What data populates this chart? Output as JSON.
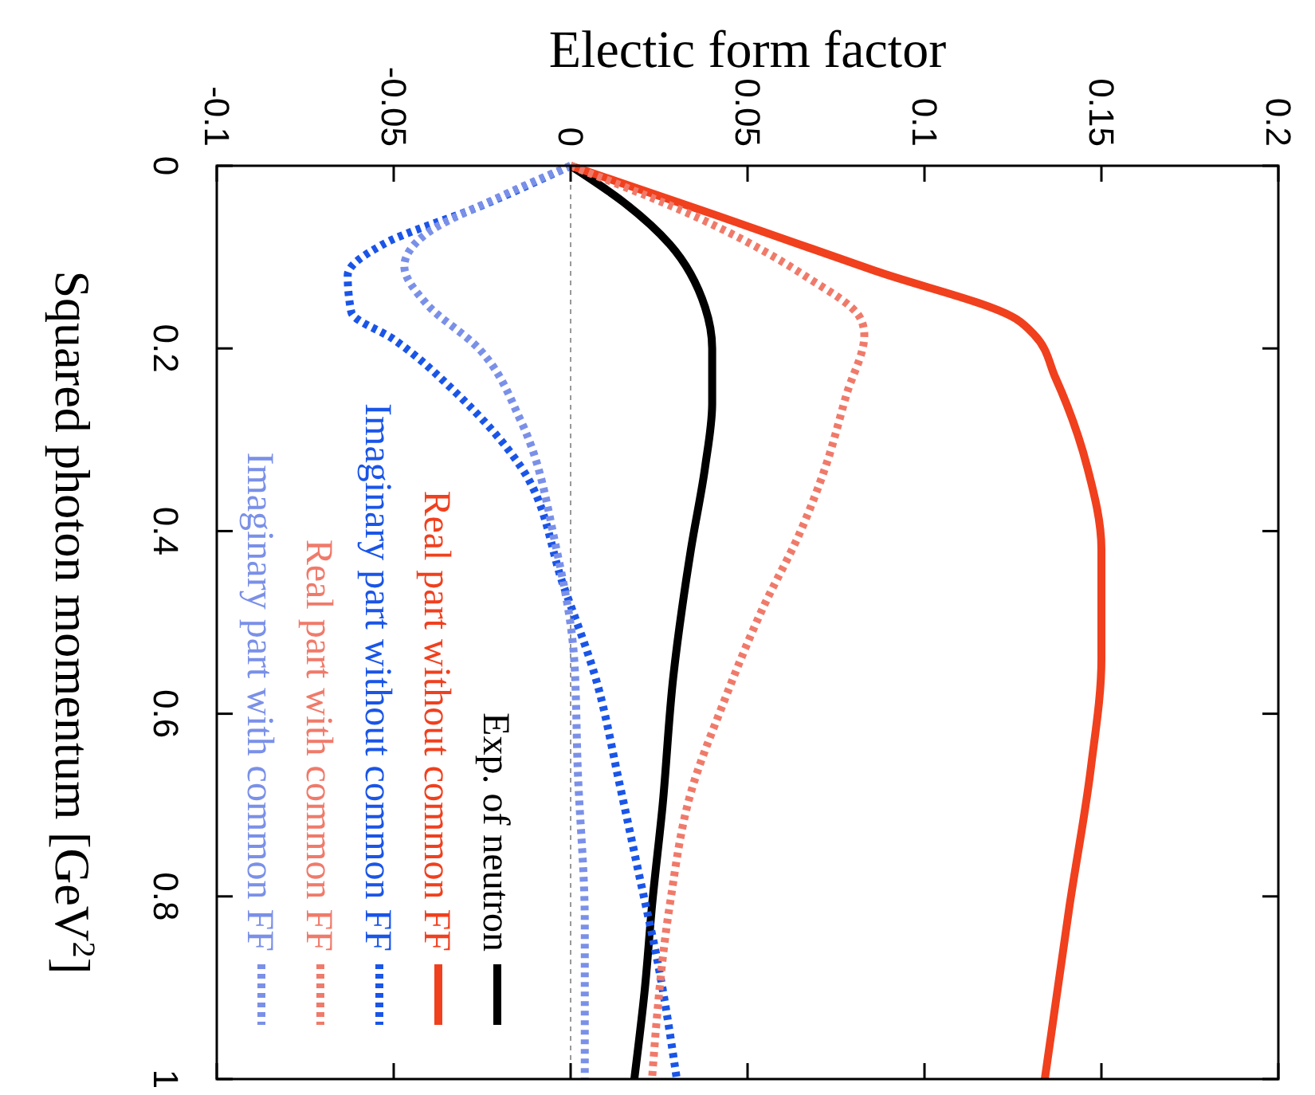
{
  "chart_data": {
    "type": "line",
    "xlabel": "Electic form factor",
    "ylabel": "Squared photon momentum [GeV$^{2}$]",
    "xlim": [
      -0.1,
      0.2
    ],
    "ylim": [
      1,
      0
    ],
    "xticks": [
      -0.1,
      -0.05,
      0,
      0.05,
      0.1,
      0.15,
      0.2
    ],
    "yticks": [
      0,
      0.2,
      0.4,
      0.6,
      0.8,
      1
    ],
    "grid": false,
    "legend": "bottom left",
    "marker": "none",
    "ref_lines": [
      {
        "axis": "x",
        "value": 0,
        "color": "#999999",
        "line_style": "dotted"
      }
    ],
    "series": [
      {
        "name": "Exp. of neutron",
        "color": "#000000",
        "line_style": "solid",
        "x": [
          0,
          0.015,
          0.028,
          0.038,
          0.04,
          0.04,
          0.038,
          0.034,
          0.029,
          0.026,
          0.023,
          0.021,
          0.018
        ],
        "values": [
          0,
          0.04,
          0.086,
          0.155,
          0.2,
          0.26,
          0.33,
          0.42,
          0.56,
          0.7,
          0.81,
          0.9,
          1.0
        ]
      },
      {
        "name": "Real part without common FF",
        "color": "#f0401e",
        "line_style": "solid",
        "x": [
          0,
          0.041,
          0.086,
          0.126,
          0.131,
          0.137,
          0.146,
          0.15,
          0.15,
          0.147,
          0.141,
          0.134
        ],
        "values": [
          0,
          0.054,
          0.115,
          0.168,
          0.185,
          0.232,
          0.33,
          0.42,
          0.54,
          0.66,
          0.81,
          1.0
        ]
      },
      {
        "name": "Imaginary part without common FF",
        "color": "#1a55e8",
        "line_style": "dotted",
        "x": [
          0,
          -0.026,
          -0.053,
          -0.063,
          -0.062,
          -0.05,
          -0.032,
          -0.014,
          -0.002,
          0.007,
          0.014,
          0.019,
          0.025,
          0.03
        ],
        "values": [
          0,
          0.045,
          0.086,
          0.12,
          0.16,
          0.19,
          0.25,
          0.33,
          0.46,
          0.56,
          0.68,
          0.77,
          0.88,
          1.0
        ]
      },
      {
        "name": "Real part with common FF",
        "color": "#f07a6a",
        "line_style": "dotted",
        "x": [
          0,
          0.041,
          0.066,
          0.082,
          0.083,
          0.078,
          0.072,
          0.065,
          0.054,
          0.043,
          0.034,
          0.028,
          0.023
        ],
        "values": [
          0,
          0.066,
          0.12,
          0.168,
          0.185,
          0.25,
          0.33,
          0.4,
          0.487,
          0.59,
          0.686,
          0.81,
          1.0
        ]
      },
      {
        "name": "Imaginary part with common FF",
        "color": "#7a90e8",
        "line_style": "dotted",
        "x": [
          0,
          -0.02,
          -0.041,
          -0.047,
          -0.041,
          -0.026,
          -0.014,
          -0.004,
          0.001,
          0.002,
          0.004,
          0.004
        ],
        "values": [
          0,
          0.034,
          0.075,
          0.11,
          0.15,
          0.2,
          0.28,
          0.42,
          0.54,
          0.66,
          0.83,
          1.0
        ]
      }
    ]
  }
}
